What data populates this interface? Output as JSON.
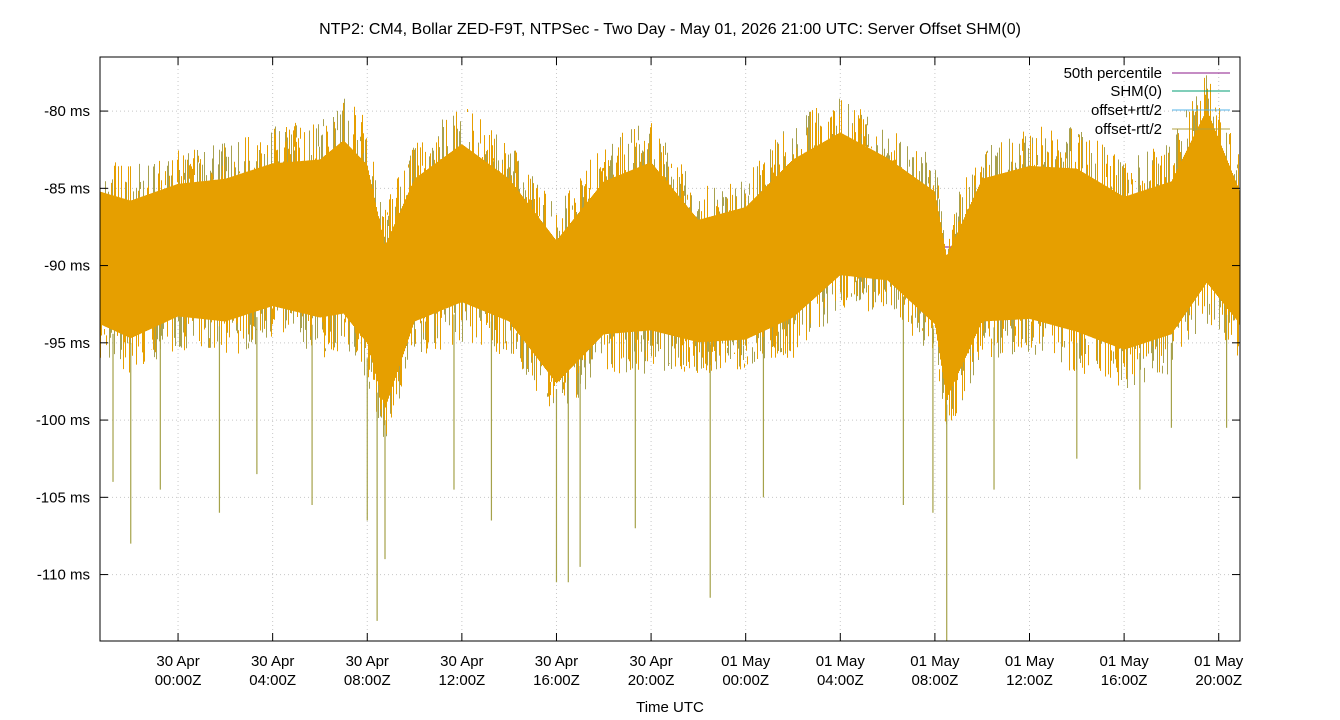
{
  "chart_data": {
    "type": "line",
    "title": "NTP2: CM4, Bollar ZED-F9T, NTPSec - Two Day - May 01, 2026 21:00 UTC: Server Offset SHM(0)",
    "xlabel": "Time UTC",
    "ylabel": "",
    "grid": true,
    "legend_position": "top-right",
    "xlim": [
      "2026-04-29T20:42Z",
      "2026-05-01T20:54Z"
    ],
    "ylim": [
      -114.3,
      -76.5
    ],
    "y_ticks": [
      {
        "value": -80,
        "label": "-80 ms"
      },
      {
        "value": -85,
        "label": "-85 ms"
      },
      {
        "value": -90,
        "label": "-90 ms"
      },
      {
        "value": -95,
        "label": "-95 ms"
      },
      {
        "value": -100,
        "label": "-100 ms"
      },
      {
        "value": -105,
        "label": "-105 ms"
      },
      {
        "value": -110,
        "label": "-110 ms"
      }
    ],
    "x_ticks": [
      {
        "value": "2026-04-30T00:00Z",
        "line1": "30 Apr",
        "line2": "00:00Z"
      },
      {
        "value": "2026-04-30T04:00Z",
        "line1": "30 Apr",
        "line2": "04:00Z"
      },
      {
        "value": "2026-04-30T08:00Z",
        "line1": "30 Apr",
        "line2": "08:00Z"
      },
      {
        "value": "2026-04-30T12:00Z",
        "line1": "30 Apr",
        "line2": "12:00Z"
      },
      {
        "value": "2026-04-30T16:00Z",
        "line1": "30 Apr",
        "line2": "16:00Z"
      },
      {
        "value": "2026-04-30T20:00Z",
        "line1": "30 Apr",
        "line2": "20:00Z"
      },
      {
        "value": "2026-05-01T00:00Z",
        "line1": "01 May",
        "line2": "00:00Z"
      },
      {
        "value": "2026-05-01T04:00Z",
        "line1": "01 May",
        "line2": "04:00Z"
      },
      {
        "value": "2026-05-01T08:00Z",
        "line1": "01 May",
        "line2": "08:00Z"
      },
      {
        "value": "2026-05-01T12:00Z",
        "line1": "01 May",
        "line2": "12:00Z"
      },
      {
        "value": "2026-05-01T16:00Z",
        "line1": "01 May",
        "line2": "16:00Z"
      },
      {
        "value": "2026-05-01T20:00Z",
        "line1": "01 May",
        "line2": "20:00Z"
      }
    ],
    "series": [
      {
        "name": "50th percentile",
        "color": "#8b1a89",
        "kind": "constant",
        "value": -88.8
      },
      {
        "name": "SHM(0)",
        "color": "#009e73",
        "kind": "band"
      },
      {
        "name": "offset+rtt/2",
        "color": "#56b4e9",
        "kind": "band"
      },
      {
        "name": "offset-rtt/2",
        "color": "#e69f00",
        "kind": "band"
      }
    ],
    "envelope": {
      "x": [
        "2026-04-29T20:42Z",
        "2026-04-29T22:00Z",
        "2026-04-30T00:00Z",
        "2026-04-30T02:00Z",
        "2026-04-30T04:00Z",
        "2026-04-30T06:00Z",
        "2026-04-30T07:00Z",
        "2026-04-30T08:00Z",
        "2026-04-30T08:45Z",
        "2026-04-30T10:00Z",
        "2026-04-30T12:00Z",
        "2026-04-30T14:00Z",
        "2026-04-30T16:00Z",
        "2026-04-30T18:00Z",
        "2026-04-30T20:00Z",
        "2026-04-30T22:00Z",
        "2026-05-01T00:00Z",
        "2026-05-01T02:00Z",
        "2026-05-01T04:00Z",
        "2026-05-01T06:00Z",
        "2026-05-01T08:00Z",
        "2026-05-01T08:30Z",
        "2026-05-01T10:00Z",
        "2026-05-01T12:00Z",
        "2026-05-01T14:00Z",
        "2026-05-01T16:00Z",
        "2026-05-01T18:00Z",
        "2026-05-01T19:30Z",
        "2026-05-01T20:54Z"
      ],
      "high": [
        -83,
        -83.5,
        -82.5,
        -82,
        -81,
        -80.5,
        -79,
        -80.5,
        -86,
        -82,
        -79.5,
        -82,
        -86,
        -82,
        -80.5,
        -85,
        -84,
        -80.5,
        -79,
        -81,
        -83,
        -87,
        -82,
        -81,
        -81,
        -83,
        -82,
        -77,
        -83
      ],
      "low": [
        -96,
        -97,
        -95.5,
        -96,
        -95,
        -96,
        -96,
        -98,
        -102,
        -96,
        -95,
        -96,
        -100,
        -97,
        -97,
        -97,
        -97,
        -96,
        -93,
        -93,
        -96,
        -101,
        -96,
        -96,
        -97,
        -98,
        -97,
        -94,
        -96
      ],
      "spikes": [
        {
          "x": "2026-04-29T21:15Z",
          "y": -104
        },
        {
          "x": "2026-04-29T22:00Z",
          "y": -108
        },
        {
          "x": "2026-04-29T23:15Z",
          "y": -104.5
        },
        {
          "x": "2026-04-30T01:45Z",
          "y": -106
        },
        {
          "x": "2026-04-30T03:20Z",
          "y": -103.5
        },
        {
          "x": "2026-04-30T05:40Z",
          "y": -105.5
        },
        {
          "x": "2026-04-30T08:00Z",
          "y": -106.5
        },
        {
          "x": "2026-04-30T08:25Z",
          "y": -113
        },
        {
          "x": "2026-04-30T08:45Z",
          "y": -109
        },
        {
          "x": "2026-04-30T11:40Z",
          "y": -104.5
        },
        {
          "x": "2026-04-30T13:15Z",
          "y": -106.5
        },
        {
          "x": "2026-04-30T16:00Z",
          "y": -110.5
        },
        {
          "x": "2026-04-30T16:30Z",
          "y": -110.5
        },
        {
          "x": "2026-04-30T17:00Z",
          "y": -109.5
        },
        {
          "x": "2026-04-30T19:20Z",
          "y": -107
        },
        {
          "x": "2026-04-30T22:30Z",
          "y": -111.5
        },
        {
          "x": "2026-05-01T00:45Z",
          "y": -105
        },
        {
          "x": "2026-05-01T06:40Z",
          "y": -105.5
        },
        {
          "x": "2026-05-01T07:55Z",
          "y": -106
        },
        {
          "x": "2026-05-01T08:30Z",
          "y": -114.3
        },
        {
          "x": "2026-05-01T10:30Z",
          "y": -104.5
        },
        {
          "x": "2026-05-01T14:00Z",
          "y": -102.5
        },
        {
          "x": "2026-05-01T16:40Z",
          "y": -104.5
        },
        {
          "x": "2026-05-01T18:00Z",
          "y": -100.5
        },
        {
          "x": "2026-05-01T20:20Z",
          "y": -100.5
        }
      ]
    }
  }
}
